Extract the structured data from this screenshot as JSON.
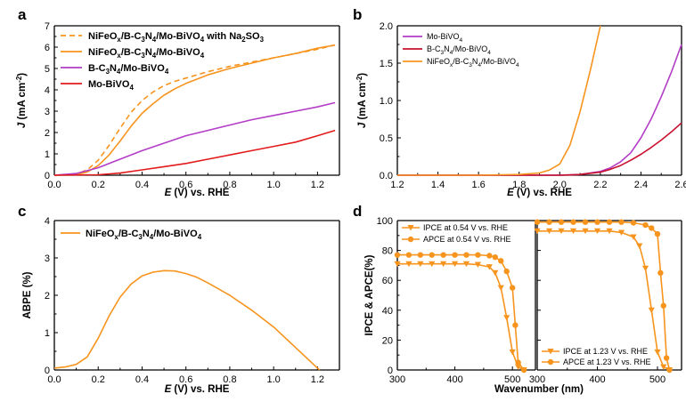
{
  "chart_data": [
    {
      "panel": "a",
      "type": "line",
      "xlabel_italic": "E",
      "xlabel": " (V) vs. RHE",
      "ylabel_italic": "J",
      "ylabel": " (mA cm",
      "ylabel_sup": "-2",
      "ylabel_end": ")",
      "xlim": [
        0.0,
        1.3
      ],
      "ylim": [
        0,
        7
      ],
      "xticks": [
        0.0,
        0.2,
        0.4,
        0.6,
        0.8,
        1.0,
        1.2
      ],
      "xtick_labels": [
        "0.0",
        "0.2",
        "0.4",
        "0.6",
        "0.8",
        "1.0",
        "1.2"
      ],
      "yticks": [
        0,
        1,
        2,
        3,
        4,
        5,
        6,
        7
      ],
      "ytick_labels": [
        "0",
        "1",
        "2",
        "3",
        "4",
        "5",
        "6",
        "7"
      ],
      "legend_position": "top-left",
      "series": [
        {
          "name": "NiFeOx/B-C3N4/Mo-BiVO4 with Na2SO3",
          "legend_parts": [
            [
              "NiFeO",
              ""
            ],
            [
              "x",
              "sub"
            ],
            [
              "/B-C",
              ""
            ],
            [
              "3",
              "sub"
            ],
            [
              "N",
              ""
            ],
            [
              "4",
              "sub"
            ],
            [
              "/Mo-BiVO",
              ""
            ],
            [
              "4",
              "sub"
            ],
            [
              " with Na",
              ""
            ],
            [
              "2",
              "sub"
            ],
            [
              "SO",
              ""
            ],
            [
              "3",
              "sub"
            ]
          ],
          "color": "#F7941D",
          "dashed": true,
          "x": [
            0.0,
            0.1,
            0.15,
            0.2,
            0.25,
            0.3,
            0.35,
            0.4,
            0.45,
            0.5,
            0.55,
            0.6,
            0.7,
            0.8,
            0.9,
            1.0,
            1.1,
            1.2,
            1.28
          ],
          "y": [
            0.0,
            0.05,
            0.25,
            0.7,
            1.4,
            2.2,
            2.95,
            3.5,
            3.9,
            4.2,
            4.4,
            4.55,
            4.85,
            5.1,
            5.3,
            5.5,
            5.7,
            5.9,
            6.1
          ]
        },
        {
          "name": "NiFeOx/B-C3N4/Mo-BiVO4",
          "legend_parts": [
            [
              "NiFeO",
              ""
            ],
            [
              "x",
              "sub"
            ],
            [
              "/B-C",
              ""
            ],
            [
              "3",
              "sub"
            ],
            [
              "N",
              ""
            ],
            [
              "4",
              "sub"
            ],
            [
              "/Mo-BiVO",
              ""
            ],
            [
              "4",
              "sub"
            ]
          ],
          "color": "#F7941D",
          "dashed": false,
          "x": [
            0.0,
            0.1,
            0.15,
            0.2,
            0.25,
            0.3,
            0.35,
            0.4,
            0.45,
            0.5,
            0.55,
            0.6,
            0.7,
            0.8,
            0.9,
            1.0,
            1.1,
            1.2,
            1.28
          ],
          "y": [
            0.0,
            0.03,
            0.15,
            0.45,
            0.95,
            1.6,
            2.3,
            2.9,
            3.35,
            3.75,
            4.05,
            4.3,
            4.7,
            5.0,
            5.25,
            5.5,
            5.7,
            5.95,
            6.1
          ]
        },
        {
          "name": "B-C3N4/Mo-BiVO4",
          "legend_parts": [
            [
              "B-C",
              ""
            ],
            [
              "3",
              "sub"
            ],
            [
              "N",
              ""
            ],
            [
              "4",
              "sub"
            ],
            [
              "/Mo-BiVO",
              ""
            ],
            [
              "4",
              "sub"
            ]
          ],
          "color": "#B33DC6",
          "dashed": false,
          "x": [
            0.0,
            0.1,
            0.2,
            0.3,
            0.4,
            0.5,
            0.6,
            0.7,
            0.8,
            0.9,
            1.0,
            1.1,
            1.2,
            1.28
          ],
          "y": [
            0.0,
            0.08,
            0.35,
            0.75,
            1.15,
            1.5,
            1.85,
            2.1,
            2.35,
            2.6,
            2.8,
            3.0,
            3.2,
            3.4
          ]
        },
        {
          "name": "Mo-BiVO4",
          "legend_parts": [
            [
              "Mo-BiVO",
              ""
            ],
            [
              "4",
              "sub"
            ]
          ],
          "color": "#E31A1C",
          "dashed": false,
          "x": [
            0.0,
            0.2,
            0.3,
            0.4,
            0.5,
            0.6,
            0.7,
            0.8,
            0.9,
            1.0,
            1.1,
            1.2,
            1.28
          ],
          "y": [
            0.0,
            0.02,
            0.1,
            0.25,
            0.4,
            0.55,
            0.75,
            0.95,
            1.15,
            1.35,
            1.55,
            1.85,
            2.1
          ]
        }
      ]
    },
    {
      "panel": "b",
      "type": "line",
      "xlabel_italic": "E",
      "xlabel": " (V) vs. RHE",
      "ylabel_italic": "J",
      "ylabel": " (mA cm",
      "ylabel_sup": "-2",
      "ylabel_end": ")",
      "xlim": [
        1.2,
        2.6
      ],
      "ylim": [
        0.0,
        2.0
      ],
      "xticks": [
        1.2,
        1.4,
        1.6,
        1.8,
        2.0,
        2.2,
        2.4,
        2.6
      ],
      "xtick_labels": [
        "1.2",
        "1.4",
        "1.6",
        "1.8",
        "2.0",
        "2.2",
        "2.4",
        "2.6"
      ],
      "yticks": [
        0.0,
        0.5,
        1.0,
        1.5,
        2.0
      ],
      "ytick_labels": [
        "0.0",
        "0.5",
        "1.0",
        "1.5",
        "2.0"
      ],
      "legend_position": "top-left",
      "series": [
        {
          "name": "Mo-BiVO4",
          "legend_parts": [
            [
              "Mo-BiVO",
              ""
            ],
            [
              "4",
              "sub"
            ]
          ],
          "color": "#B33DC6",
          "dashed": false,
          "x": [
            1.2,
            2.0,
            2.1,
            2.2,
            2.25,
            2.3,
            2.35,
            2.4,
            2.45,
            2.5,
            2.55,
            2.6
          ],
          "y": [
            0.0,
            0.0,
            0.01,
            0.05,
            0.1,
            0.18,
            0.3,
            0.5,
            0.75,
            1.05,
            1.38,
            1.75
          ]
        },
        {
          "name": "B-C3N4/Mo-BiVO4",
          "legend_parts": [
            [
              "B-C",
              ""
            ],
            [
              "3",
              "sub"
            ],
            [
              "N",
              ""
            ],
            [
              "4",
              "sub"
            ],
            [
              "/Mo-BiVO",
              ""
            ],
            [
              "4",
              "sub"
            ]
          ],
          "color": "#C8102E",
          "dashed": false,
          "x": [
            1.2,
            2.0,
            2.1,
            2.2,
            2.25,
            2.3,
            2.35,
            2.4,
            2.45,
            2.5,
            2.55,
            2.6
          ],
          "y": [
            0.0,
            0.0,
            0.01,
            0.04,
            0.08,
            0.13,
            0.2,
            0.28,
            0.37,
            0.47,
            0.58,
            0.7
          ]
        },
        {
          "name": "NiFeOx/B-C3N4/Mo-BiVO4",
          "legend_parts": [
            [
              "NiFeO",
              ""
            ],
            [
              "x",
              "sub"
            ],
            [
              "/B-C",
              ""
            ],
            [
              "3",
              "sub"
            ],
            [
              "N",
              ""
            ],
            [
              "4",
              "sub"
            ],
            [
              "/Mo-BiVO",
              ""
            ],
            [
              "4",
              "sub"
            ]
          ],
          "color": "#F7941D",
          "dashed": false,
          "x": [
            1.2,
            1.6,
            1.8,
            1.9,
            1.95,
            2.0,
            2.05,
            2.1,
            2.15,
            2.2
          ],
          "y": [
            0.0,
            0.0,
            0.01,
            0.03,
            0.07,
            0.15,
            0.4,
            0.85,
            1.4,
            2.0
          ]
        }
      ]
    },
    {
      "panel": "c",
      "type": "line",
      "xlabel_italic": "E",
      "xlabel": " (V) vs. RHE",
      "ylabel": "ABPE (%)",
      "xlim": [
        0.0,
        1.3
      ],
      "ylim": [
        0,
        4
      ],
      "xticks": [
        0.0,
        0.2,
        0.4,
        0.6,
        0.8,
        1.0,
        1.2
      ],
      "xtick_labels": [
        "0.0",
        "0.2",
        "0.4",
        "0.6",
        "0.8",
        "1.0",
        "1.2"
      ],
      "yticks": [
        0,
        1,
        2,
        3,
        4
      ],
      "ytick_labels": [
        "0",
        "1",
        "2",
        "3",
        "4"
      ],
      "legend_position": "top-left",
      "series": [
        {
          "name": "NiFeOx/B-C3N4/Mo-BiVO4",
          "legend_parts": [
            [
              "NiFeO",
              ""
            ],
            [
              "x",
              "sub"
            ],
            [
              "/B-C",
              ""
            ],
            [
              "3",
              "sub"
            ],
            [
              "N",
              ""
            ],
            [
              "4",
              "sub"
            ],
            [
              "/Mo-BiVO",
              ""
            ],
            [
              "4",
              "sub"
            ]
          ],
          "color": "#F7941D",
          "dashed": false,
          "x": [
            0.0,
            0.05,
            0.1,
            0.15,
            0.2,
            0.25,
            0.3,
            0.35,
            0.4,
            0.45,
            0.5,
            0.55,
            0.6,
            0.65,
            0.7,
            0.8,
            0.9,
            1.0,
            1.1,
            1.2,
            1.21
          ],
          "y": [
            0.05,
            0.08,
            0.15,
            0.35,
            0.85,
            1.45,
            1.95,
            2.3,
            2.52,
            2.62,
            2.66,
            2.65,
            2.58,
            2.48,
            2.33,
            2.0,
            1.6,
            1.15,
            0.6,
            0.05,
            0.0
          ]
        }
      ]
    },
    {
      "panel": "d",
      "type": "line",
      "xlabel": "Wavenumber (nm)",
      "ylabel": "IPCE & APCE(%)",
      "ylim": [
        0,
        100
      ],
      "yticks": [
        0,
        20,
        40,
        60,
        80,
        100
      ],
      "ytick_labels": [
        "0",
        "20",
        "40",
        "60",
        "80",
        "100"
      ],
      "subpanels": [
        {
          "xlim": [
            300,
            540
          ],
          "xticks": [
            300,
            400,
            500
          ],
          "xtick_labels": [
            "300",
            "400",
            "500"
          ],
          "legend_position": "top-left",
          "series": [
            {
              "name": "IPCE  at 0.54 V vs. RHE",
              "marker": "triangle-down",
              "color": "#F7941D",
              "x": [
                300,
                320,
                340,
                360,
                380,
                400,
                420,
                440,
                460,
                470,
                480,
                490,
                500,
                510,
                520
              ],
              "y": [
                71,
                71,
                71,
                71,
                71,
                71,
                71,
                70.5,
                69,
                65,
                55,
                35,
                12,
                2,
                0
              ]
            },
            {
              "name": "APCE at 0.54 V vs. RHE",
              "marker": "circle",
              "color": "#F7941D",
              "x": [
                300,
                320,
                340,
                360,
                380,
                400,
                420,
                440,
                460,
                470,
                480,
                490,
                500,
                505,
                510,
                520
              ],
              "y": [
                77,
                77,
                77,
                77,
                77,
                77,
                77,
                77,
                76.5,
                75.5,
                73,
                66,
                55,
                30,
                5,
                0
              ]
            }
          ]
        },
        {
          "xlim": [
            300,
            540
          ],
          "xticks": [
            300,
            400,
            500
          ],
          "xtick_labels": [
            "300",
            "400",
            "500"
          ],
          "legend_position": "bottom-left",
          "series": [
            {
              "name": "IPCE  at 1.23 V vs. RHE",
              "marker": "triangle-down",
              "color": "#F7941D",
              "x": [
                300,
                320,
                340,
                360,
                380,
                400,
                420,
                440,
                460,
                470,
                480,
                490,
                500,
                510,
                520
              ],
              "y": [
                93,
                93,
                93,
                93,
                93,
                93,
                93,
                92,
                89,
                83,
                68,
                40,
                12,
                2,
                0
              ]
            },
            {
              "name": "APCE at 1.23 V vs. RHE",
              "marker": "circle",
              "color": "#F7941D",
              "x": [
                300,
                320,
                340,
                360,
                380,
                400,
                420,
                440,
                460,
                480,
                490,
                500,
                505,
                510,
                515,
                520
              ],
              "y": [
                99,
                99,
                99,
                99,
                99,
                99,
                99,
                99,
                98.5,
                97,
                95,
                91,
                65,
                43,
                8,
                0
              ]
            }
          ]
        }
      ]
    }
  ]
}
